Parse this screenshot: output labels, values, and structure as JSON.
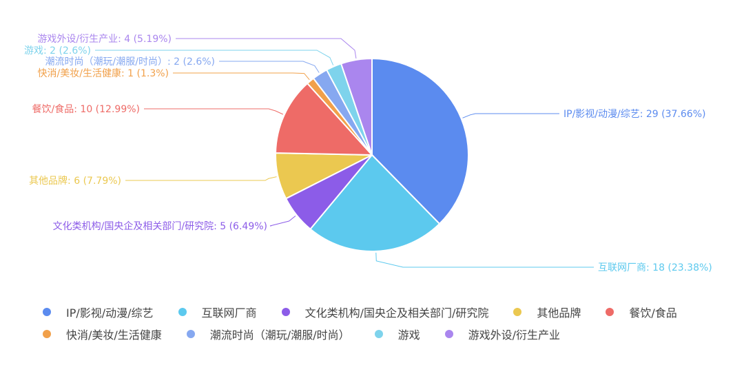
{
  "chart_data": {
    "type": "pie",
    "series": [
      {
        "name": "IP/影视/动漫/综艺",
        "value": 29,
        "label": "IP/影视/动漫/综艺: 29 (37.66%)",
        "color": "#5B8BEF"
      },
      {
        "name": "互联网厂商",
        "value": 18,
        "label": "互联网厂商: 18 (23.38%)",
        "color": "#5CC9EE"
      },
      {
        "name": "文化类机构/国央企及相关部门/研究院",
        "value": 5,
        "label": "文化类机构/国央企及相关部门/研究院: 5 (6.49%)",
        "color": "#8C5CE8"
      },
      {
        "name": "其他品牌",
        "value": 6,
        "label": "其他品牌: 6 (7.79%)",
        "color": "#EBC850"
      },
      {
        "name": "餐饮/食品",
        "value": 10,
        "label": "餐饮/食品: 10 (12.99%)",
        "color": "#EE6B67"
      },
      {
        "name": "快消/美妆/生活健康",
        "value": 1,
        "label": "快消/美妆/生活健康: 1 (1.3%)",
        "color": "#F1A04A"
      },
      {
        "name": "潮流时尚（潮玩/潮服/时尚）",
        "value": 2,
        "label": "潮流时尚（潮玩/潮服/时尚）: 2 (2.6%)",
        "color": "#86A8F0"
      },
      {
        "name": "游戏",
        "value": 2,
        "label": "游戏: 2 (2.6%)",
        "color": "#7ED3EC"
      },
      {
        "name": "游戏外设/衍生产业",
        "value": 4,
        "label": "游戏外设/衍生产业: 4 (5.19%)",
        "color": "#AA86EE"
      }
    ],
    "legend": "bottom"
  }
}
